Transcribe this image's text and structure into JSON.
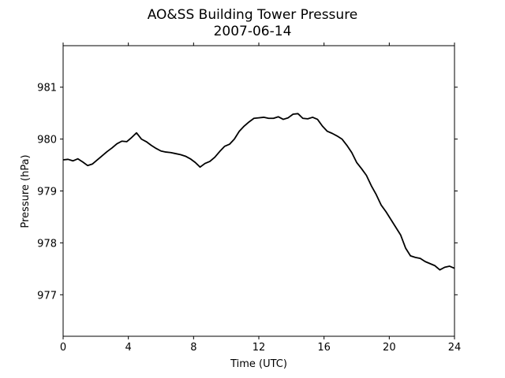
{
  "chart_data": {
    "type": "line",
    "title": "AO&SS Building Tower Pressure",
    "subtitle": "2007-06-14",
    "xlabel": "Time (UTC)",
    "ylabel": "Pressure (hPa)",
    "xlim": [
      0,
      24
    ],
    "ylim": [
      976.2,
      981.8
    ],
    "xticks": [
      0,
      4,
      8,
      12,
      16,
      20,
      24
    ],
    "yticks": [
      977,
      978,
      979,
      980,
      981
    ],
    "grid": false,
    "legend": "none",
    "series": [
      {
        "color": "#000000",
        "points": [
          [
            0.0,
            979.6
          ],
          [
            0.3,
            979.61
          ],
          [
            0.6,
            979.58
          ],
          [
            0.9,
            979.62
          ],
          [
            1.2,
            979.56
          ],
          [
            1.5,
            979.49
          ],
          [
            1.8,
            979.52
          ],
          [
            2.1,
            979.6
          ],
          [
            2.4,
            979.68
          ],
          [
            2.7,
            979.76
          ],
          [
            3.0,
            979.83
          ],
          [
            3.3,
            979.91
          ],
          [
            3.6,
            979.96
          ],
          [
            3.9,
            979.95
          ],
          [
            4.2,
            980.03
          ],
          [
            4.5,
            980.12
          ],
          [
            4.8,
            980.0
          ],
          [
            5.1,
            979.95
          ],
          [
            5.4,
            979.88
          ],
          [
            5.7,
            979.82
          ],
          [
            6.0,
            979.77
          ],
          [
            6.3,
            979.75
          ],
          [
            6.6,
            979.74
          ],
          [
            6.9,
            979.72
          ],
          [
            7.2,
            979.7
          ],
          [
            7.5,
            979.67
          ],
          [
            7.8,
            979.62
          ],
          [
            8.1,
            979.55
          ],
          [
            8.4,
            979.46
          ],
          [
            8.7,
            979.53
          ],
          [
            9.0,
            979.57
          ],
          [
            9.3,
            979.65
          ],
          [
            9.6,
            979.76
          ],
          [
            9.9,
            979.86
          ],
          [
            10.2,
            979.9
          ],
          [
            10.5,
            980.0
          ],
          [
            10.8,
            980.15
          ],
          [
            11.1,
            980.25
          ],
          [
            11.4,
            980.33
          ],
          [
            11.7,
            980.4
          ],
          [
            12.0,
            980.41
          ],
          [
            12.3,
            980.42
          ],
          [
            12.6,
            980.4
          ],
          [
            12.9,
            980.4
          ],
          [
            13.2,
            980.43
          ],
          [
            13.5,
            980.38
          ],
          [
            13.8,
            980.41
          ],
          [
            14.1,
            980.48
          ],
          [
            14.4,
            980.49
          ],
          [
            14.7,
            980.4
          ],
          [
            15.0,
            980.39
          ],
          [
            15.3,
            980.42
          ],
          [
            15.6,
            980.38
          ],
          [
            15.9,
            980.25
          ],
          [
            16.2,
            980.15
          ],
          [
            16.5,
            980.11
          ],
          [
            16.8,
            980.06
          ],
          [
            17.1,
            980.0
          ],
          [
            17.4,
            979.88
          ],
          [
            17.7,
            979.74
          ],
          [
            18.0,
            979.55
          ],
          [
            18.3,
            979.43
          ],
          [
            18.6,
            979.3
          ],
          [
            18.9,
            979.1
          ],
          [
            19.2,
            978.93
          ],
          [
            19.5,
            978.73
          ],
          [
            19.8,
            978.6
          ],
          [
            20.1,
            978.45
          ],
          [
            20.4,
            978.3
          ],
          [
            20.7,
            978.15
          ],
          [
            21.0,
            977.9
          ],
          [
            21.3,
            977.75
          ],
          [
            21.6,
            977.72
          ],
          [
            21.9,
            977.7
          ],
          [
            22.2,
            977.64
          ],
          [
            22.5,
            977.6
          ],
          [
            22.8,
            977.56
          ],
          [
            23.1,
            977.48
          ],
          [
            23.4,
            977.53
          ],
          [
            23.7,
            977.55
          ],
          [
            24.0,
            977.51
          ]
        ]
      }
    ]
  }
}
